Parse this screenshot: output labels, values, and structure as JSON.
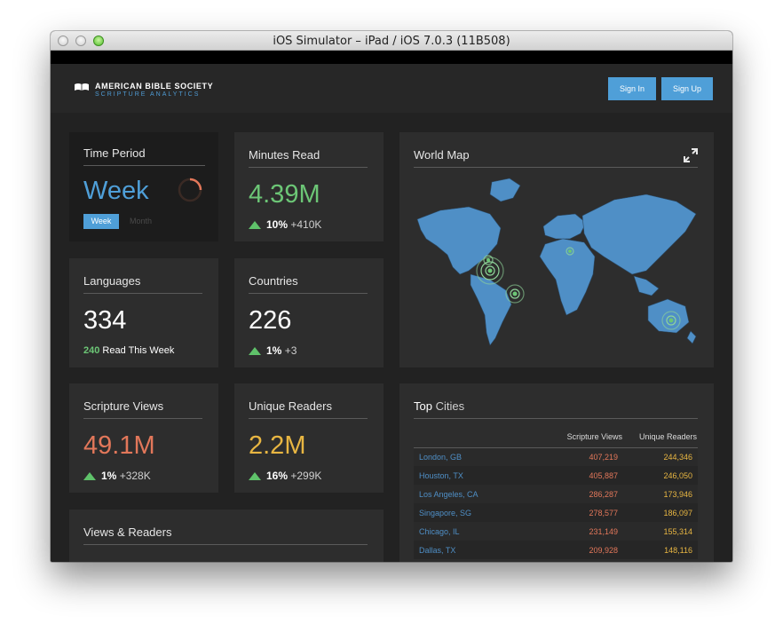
{
  "window": {
    "title": "iOS Simulator – iPad / iOS 7.0.3 (11B508)"
  },
  "header": {
    "brand": "AMERICAN BIBLE SOCIETY",
    "subtitle": "SCRIPTURE ANALYTICS",
    "sign_in": "Sign In",
    "sign_up": "Sign Up"
  },
  "colors": {
    "accent": "#4f9fd8",
    "green": "#6cc676",
    "orange": "#e2775a",
    "yellow": "#e8b642",
    "card": "#2d2d2d"
  },
  "time_period": {
    "title": "Time Period",
    "value": "Week",
    "options": [
      "Week",
      "Month"
    ],
    "selected": "Week"
  },
  "minutes_read": {
    "title": "Minutes Read",
    "value": "4.39M",
    "change_pct": "10%",
    "change_abs": "+410K"
  },
  "languages": {
    "title": "Languages",
    "value": "334",
    "sub_count": "240",
    "sub_label": "Read This Week"
  },
  "countries": {
    "title": "Countries",
    "value": "226",
    "change_pct": "1%",
    "change_abs": "+3"
  },
  "scripture_views": {
    "title": "Scripture Views",
    "value": "49.1M",
    "change_pct": "1%",
    "change_abs": "+328K"
  },
  "unique_readers": {
    "title": "Unique Readers",
    "value": "2.2M",
    "change_pct": "16%",
    "change_abs": "+299K"
  },
  "views_readers": {
    "title": "Views & Readers"
  },
  "world_map": {
    "title": "World Map",
    "expand_icon": "expand-icon"
  },
  "top_cities": {
    "title_bold": "Top",
    "title_rest": " Cities",
    "columns": [
      "",
      "Scripture Views",
      "Unique Readers"
    ],
    "rows": [
      {
        "city": "London, GB",
        "views": "407,219",
        "readers": "244,346"
      },
      {
        "city": "Houston, TX",
        "views": "405,887",
        "readers": "246,050"
      },
      {
        "city": "Los Angeles, CA",
        "views": "286,287",
        "readers": "173,946"
      },
      {
        "city": "Singapore, SG",
        "views": "278,577",
        "readers": "186,097"
      },
      {
        "city": "Chicago, IL",
        "views": "231,149",
        "readers": "155,314"
      },
      {
        "city": "Dallas, TX",
        "views": "209,928",
        "readers": "148,116"
      }
    ]
  }
}
